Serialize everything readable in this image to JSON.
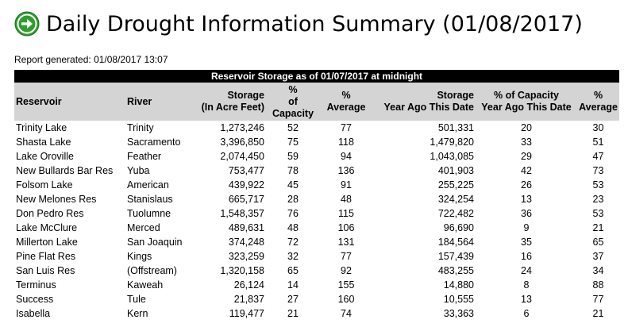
{
  "title": "Daily Drought Information Summary (01/08/2017)",
  "report_generated": "Report generated: 01/08/2017 13:07",
  "band_title": "Reservoir Storage as of 01/07/2017 at midnight",
  "colors": {
    "band": "#000000",
    "header_bg": "#d4d4d4",
    "arrow": "#2e9e2e"
  },
  "icon": "green-arrow-circle-icon",
  "headers": {
    "reservoir": "Reservoir",
    "river": "River",
    "storage_1": "Storage",
    "storage_2": "(In Acre Feet)",
    "pct_capacity_1": "%",
    "pct_capacity_2": "of Capacity",
    "pct_average_1": "%",
    "pct_average_2": "Average",
    "ya_storage_1": "Storage",
    "ya_storage_2": "Year Ago This Date",
    "ya_capacity_1": "% of Capacity",
    "ya_capacity_2": "Year Ago This Date",
    "ya_average_1": "%",
    "ya_average_2": "Average"
  },
  "rows": [
    {
      "reservoir": "Trinity Lake",
      "river": "Trinity",
      "storage": "1,273,246",
      "pct_capacity": "52",
      "pct_average": "77",
      "ya_storage": "501,331",
      "ya_capacity": "20",
      "ya_average": "30"
    },
    {
      "reservoir": "Shasta Lake",
      "river": "Sacramento",
      "storage": "3,396,850",
      "pct_capacity": "75",
      "pct_average": "118",
      "ya_storage": "1,479,820",
      "ya_capacity": "33",
      "ya_average": "51"
    },
    {
      "reservoir": "Lake Oroville",
      "river": "Feather",
      "storage": "2,074,450",
      "pct_capacity": "59",
      "pct_average": "94",
      "ya_storage": "1,043,085",
      "ya_capacity": "29",
      "ya_average": "47"
    },
    {
      "reservoir": "New Bullards Bar Res",
      "river": "Yuba",
      "storage": "753,477",
      "pct_capacity": "78",
      "pct_average": "136",
      "ya_storage": "401,903",
      "ya_capacity": "42",
      "ya_average": "73"
    },
    {
      "reservoir": "Folsom Lake",
      "river": "American",
      "storage": "439,922",
      "pct_capacity": "45",
      "pct_average": "91",
      "ya_storage": "255,225",
      "ya_capacity": "26",
      "ya_average": "53"
    },
    {
      "reservoir": "New Melones Res",
      "river": "Stanislaus",
      "storage": "665,717",
      "pct_capacity": "28",
      "pct_average": "48",
      "ya_storage": "324,254",
      "ya_capacity": "13",
      "ya_average": "23"
    },
    {
      "reservoir": "Don Pedro Res",
      "river": "Tuolumne",
      "storage": "1,548,357",
      "pct_capacity": "76",
      "pct_average": "115",
      "ya_storage": "722,482",
      "ya_capacity": "36",
      "ya_average": "53"
    },
    {
      "reservoir": "Lake McClure",
      "river": "Merced",
      "storage": "489,631",
      "pct_capacity": "48",
      "pct_average": "106",
      "ya_storage": "96,690",
      "ya_capacity": "9",
      "ya_average": "21"
    },
    {
      "reservoir": "Millerton Lake",
      "river": "San Joaquin",
      "storage": "374,248",
      "pct_capacity": "72",
      "pct_average": "131",
      "ya_storage": "184,564",
      "ya_capacity": "35",
      "ya_average": "65"
    },
    {
      "reservoir": "Pine Flat Res",
      "river": "Kings",
      "storage": "323,259",
      "pct_capacity": "32",
      "pct_average": "77",
      "ya_storage": "157,439",
      "ya_capacity": "16",
      "ya_average": "37"
    },
    {
      "reservoir": "San Luis Res",
      "river": "(Offstream)",
      "storage": "1,320,158",
      "pct_capacity": "65",
      "pct_average": "92",
      "ya_storage": "483,255",
      "ya_capacity": "24",
      "ya_average": "34"
    },
    {
      "reservoir": "Terminus",
      "river": "Kaweah",
      "storage": "26,124",
      "pct_capacity": "14",
      "pct_average": "155",
      "ya_storage": "14,880",
      "ya_capacity": "8",
      "ya_average": "88"
    },
    {
      "reservoir": "Success",
      "river": "Tule",
      "storage": "21,837",
      "pct_capacity": "27",
      "pct_average": "160",
      "ya_storage": "10,555",
      "ya_capacity": "13",
      "ya_average": "77"
    },
    {
      "reservoir": "Isabella",
      "river": "Kern",
      "storage": "119,477",
      "pct_capacity": "21",
      "pct_average": "74",
      "ya_storage": "33,363",
      "ya_capacity": "6",
      "ya_average": "21"
    }
  ]
}
